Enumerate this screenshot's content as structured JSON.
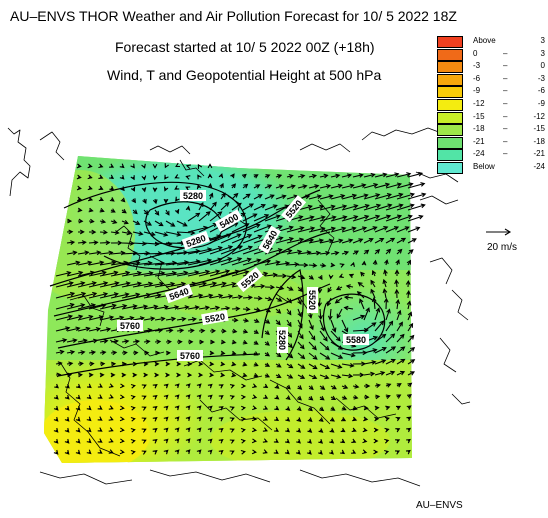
{
  "header": {
    "title": "AU–ENVS THOR Weather and Air Pollution Forecast for 10/ 5 2022  18Z",
    "subtitle_forecast": "Forecast started at 10/ 5 2022  00Z (+18h)",
    "subtitle_field": "Wind, T and Geopotential Height at 500 hPa"
  },
  "legend": {
    "items": [
      {
        "lo": "Above",
        "hi": "3",
        "color": "#f04020"
      },
      {
        "lo": "0",
        "hi": "3",
        "color": "#f06a18"
      },
      {
        "lo": "-3",
        "hi": "0",
        "color": "#f48a10"
      },
      {
        "lo": "-6",
        "hi": "-3",
        "color": "#f7a80c"
      },
      {
        "lo": "-9",
        "hi": "-6",
        "color": "#f9cc08"
      },
      {
        "lo": "-12",
        "hi": "-9",
        "color": "#f4ec10"
      },
      {
        "lo": "-15",
        "hi": "-12",
        "color": "#c8ee28"
      },
      {
        "lo": "-18",
        "hi": "-15",
        "color": "#9ee84a"
      },
      {
        "lo": "-21",
        "hi": "-18",
        "color": "#6ee070"
      },
      {
        "lo": "-24",
        "hi": "-21",
        "color": "#52e4a6"
      },
      {
        "lo": "Below",
        "hi": "-24",
        "color": "#60e8d0"
      }
    ]
  },
  "wind_reference": {
    "label": "20 m/s",
    "speed": 20
  },
  "contour_labels": [
    "5280",
    "5520",
    "5400",
    "5640",
    "5280",
    "5520",
    "5640",
    "5520",
    "5760",
    "5760",
    "5280",
    "5520",
    "5580"
  ],
  "footer": "AU–ENVS"
}
